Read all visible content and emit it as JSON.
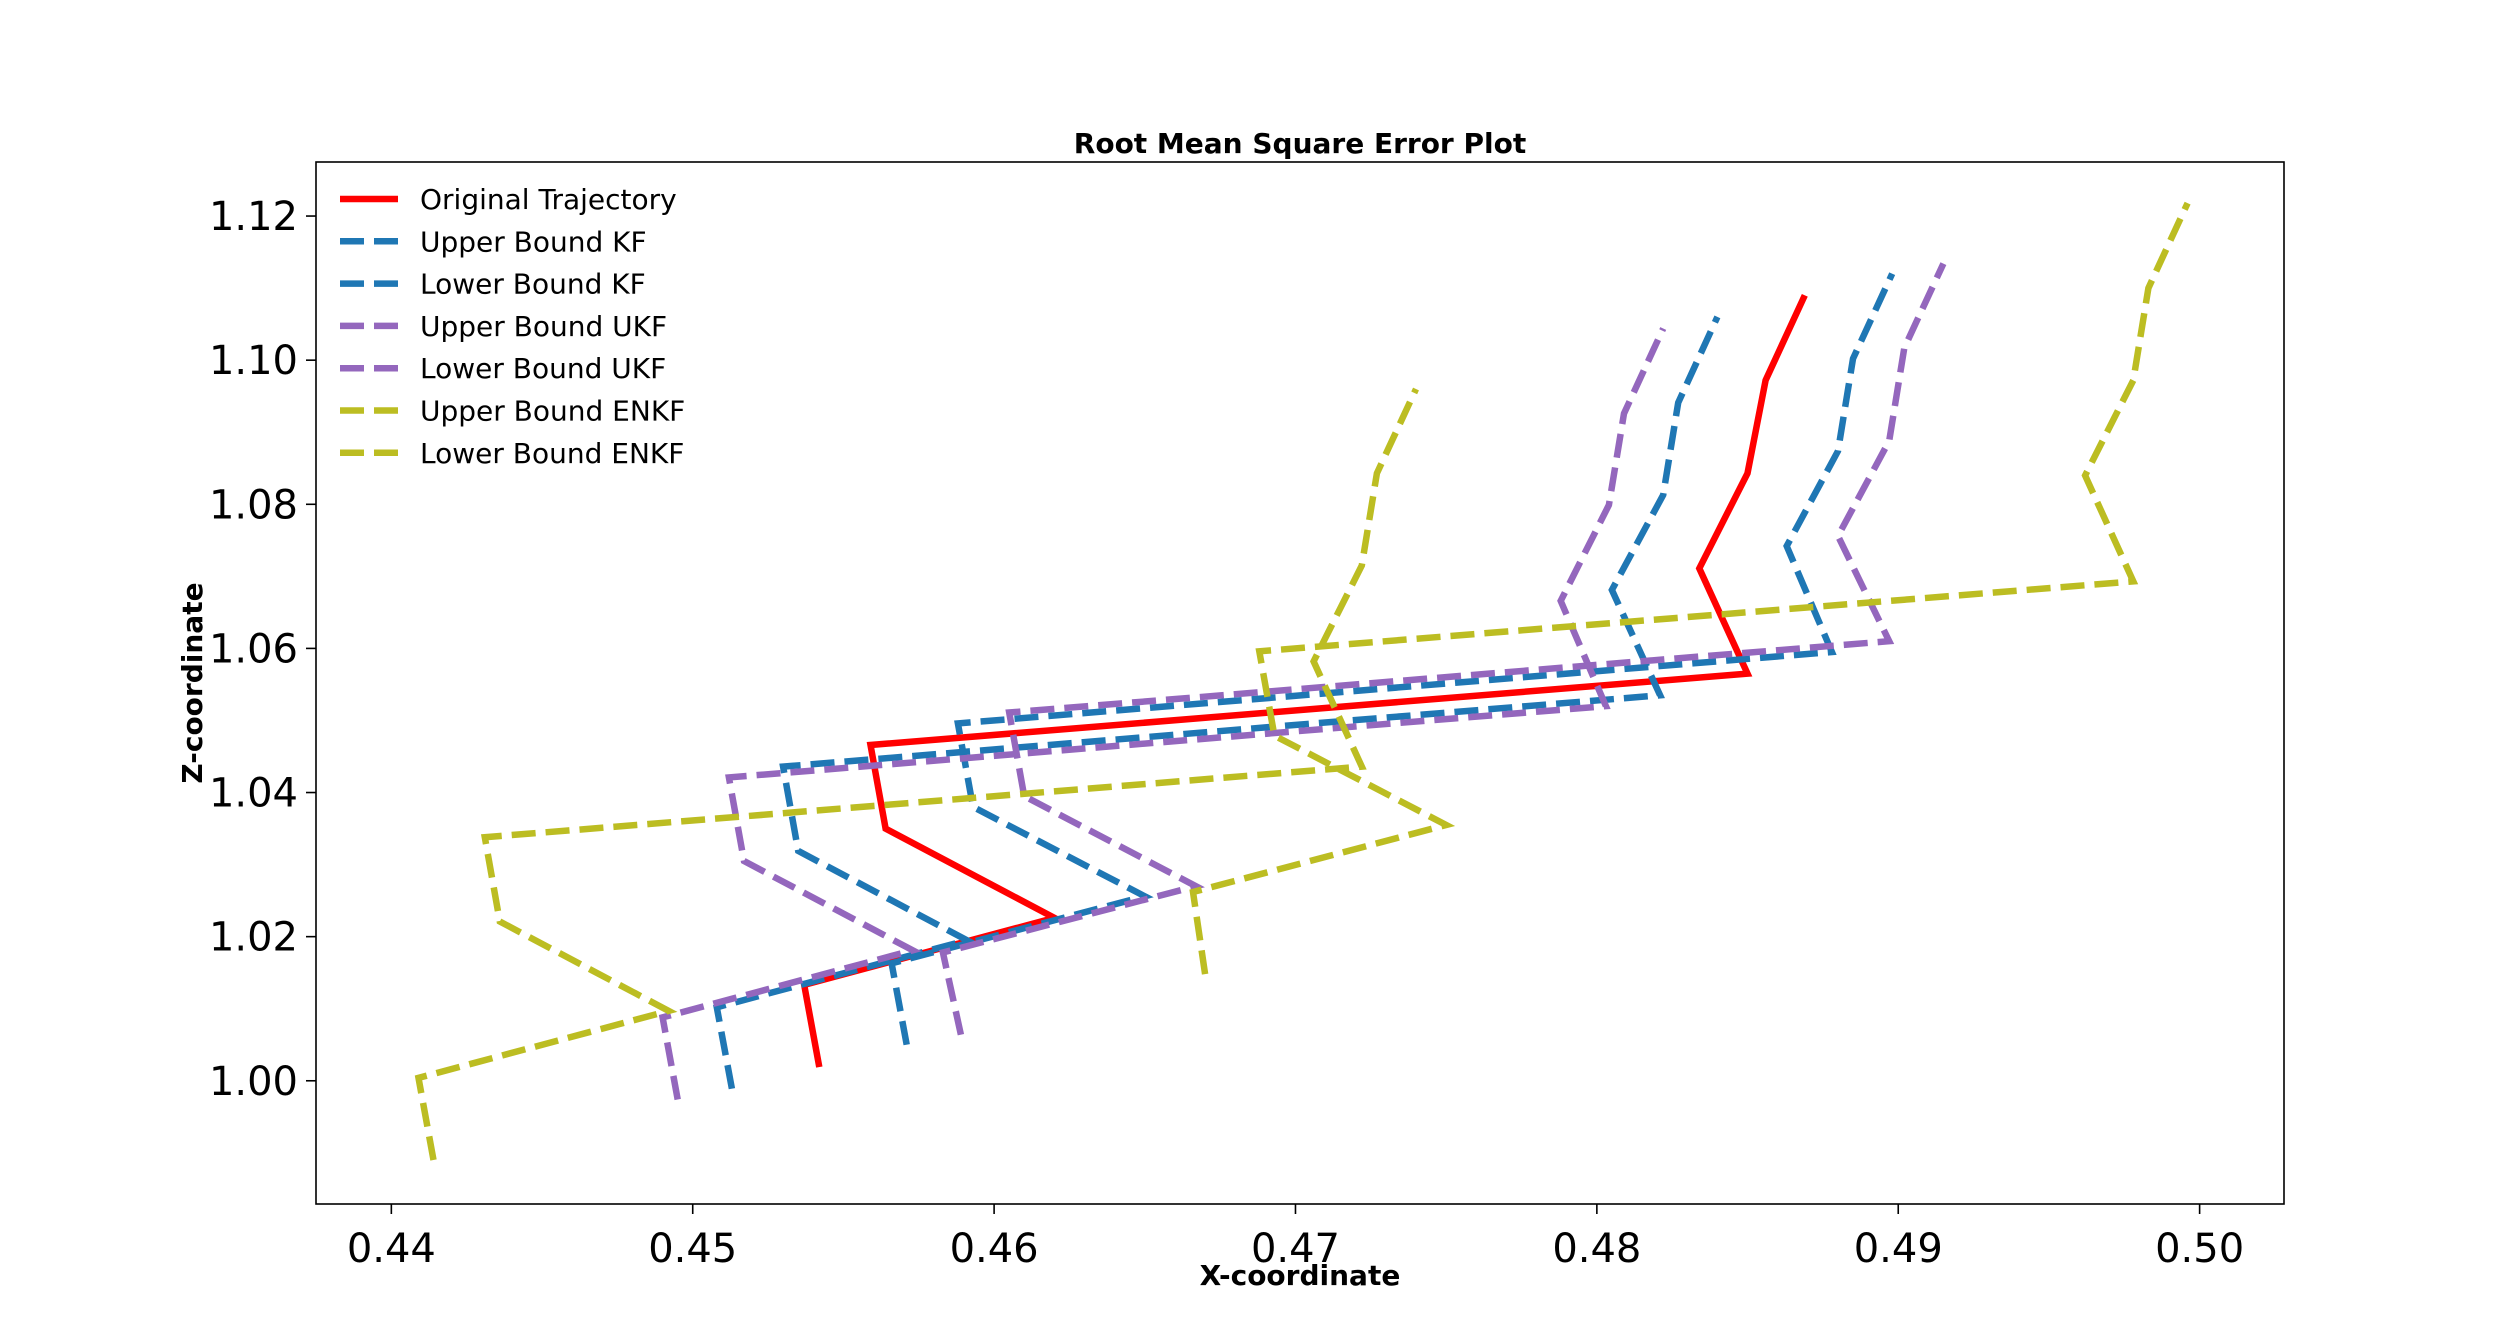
{
  "chart_data": {
    "type": "line",
    "title": "Root Mean Square Error Plot",
    "xlabel": "X-coordinate",
    "ylabel": "Z-coordinate",
    "xlim": [
      0.4375,
      0.5028
    ],
    "ylim": [
      0.9829,
      1.1275
    ],
    "xticks": [
      0.44,
      0.45,
      0.46,
      0.47,
      0.48,
      0.49,
      0.5
    ],
    "xtick_labels": [
      "0.44",
      "0.45",
      "0.46",
      "0.47",
      "0.48",
      "0.49",
      "0.50"
    ],
    "yticks": [
      1.0,
      1.02,
      1.04,
      1.06,
      1.08,
      1.1,
      1.12
    ],
    "ytick_labels": [
      "1.00",
      "1.02",
      "1.04",
      "1.06",
      "1.08",
      "1.10",
      "1.12"
    ],
    "grid": false,
    "legend_position": "top-left",
    "series": [
      {
        "name": "Original Trajectory",
        "color": "#ff0000",
        "style": "solid",
        "x": [
          0.4542,
          0.4537,
          0.462,
          0.4564,
          0.4559,
          0.485,
          0.4834,
          0.485,
          0.4856,
          0.4869
        ],
        "y": [
          1.0019,
          1.0133,
          1.0226,
          1.035,
          1.0466,
          1.0565,
          1.0711,
          1.0843,
          1.0972,
          1.109
        ]
      },
      {
        "name": "Upper Bound KF",
        "color": "#1f77b4",
        "style": "dashed",
        "x": [
          0.4571,
          0.4566,
          0.465,
          0.4593,
          0.4588,
          0.4878,
          0.4863,
          0.488,
          0.4885,
          0.4898
        ],
        "y": [
          1.005,
          1.0163,
          1.0256,
          1.038,
          1.0496,
          1.0595,
          1.0742,
          1.0874,
          1.1002,
          1.112
        ]
      },
      {
        "name": "Lower Bound KF",
        "color": "#1f77b4",
        "style": "dashed",
        "x": [
          0.4513,
          0.4508,
          0.4591,
          0.4535,
          0.453,
          0.4821,
          0.4805,
          0.4822,
          0.4827,
          0.484
        ],
        "y": [
          0.9989,
          1.0102,
          1.0195,
          1.0319,
          1.0436,
          1.0535,
          1.0681,
          1.0813,
          1.0941,
          1.106
        ]
      },
      {
        "name": "Upper Bound UKF",
        "color": "#9467bd",
        "style": "dashed",
        "x": [
          0.4589,
          0.4583,
          0.4667,
          0.461,
          0.4605,
          0.4897,
          0.488,
          0.4897,
          0.4902,
          0.4915
        ],
        "y": [
          1.0064,
          1.0178,
          1.027,
          1.0395,
          1.0511,
          1.061,
          1.0756,
          1.0888,
          1.1017,
          1.1134
        ]
      },
      {
        "name": "Lower Bound UKF",
        "color": "#9467bd",
        "style": "dashed",
        "x": [
          0.4495,
          0.449,
          0.4573,
          0.4517,
          0.4512,
          0.4803,
          0.4788,
          0.4804,
          0.4809,
          0.4822
        ],
        "y": [
          0.9974,
          1.0088,
          1.0181,
          1.0305,
          1.0421,
          1.052,
          1.0666,
          1.0799,
          1.0926,
          1.1044
        ]
      },
      {
        "name": "Upper Bound ENKF",
        "color": "#bcbd22",
        "style": "dashed",
        "x": [
          0.467,
          0.4666,
          0.475,
          0.4693,
          0.4688,
          0.4978,
          0.4962,
          0.4978,
          0.4983,
          0.4996
        ],
        "y": [
          1.0148,
          1.0262,
          1.0355,
          1.0479,
          1.0596,
          1.0693,
          1.084,
          1.0972,
          1.11,
          1.1218
        ]
      },
      {
        "name": "Lower Bound ENKF",
        "color": "#bcbd22",
        "style": "dashed",
        "x": [
          0.4414,
          0.4409,
          0.4492,
          0.4436,
          0.4431,
          0.4722,
          0.4706,
          0.4722,
          0.4727,
          0.474
        ],
        "y": [
          0.989,
          1.0004,
          1.0097,
          1.0221,
          1.0338,
          1.0436,
          1.0582,
          1.0715,
          1.0843,
          1.096
        ]
      }
    ]
  }
}
